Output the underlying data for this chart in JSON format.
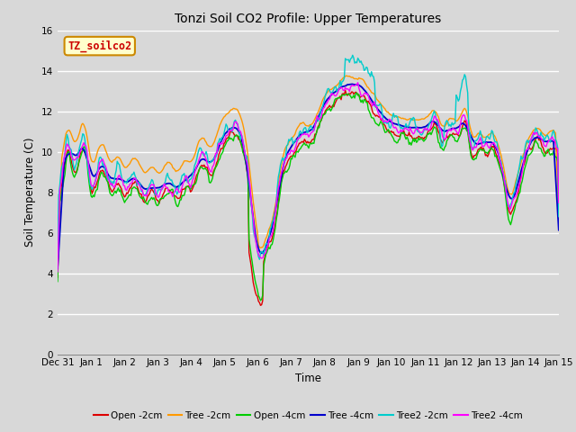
{
  "title": "Tonzi Soil CO2 Profile: Upper Temperatures",
  "xlabel": "Time",
  "ylabel": "Soil Temperature (C)",
  "ylim": [
    0,
    16
  ],
  "yticks": [
    0,
    2,
    4,
    6,
    8,
    10,
    12,
    14,
    16
  ],
  "watermark": "TZ_soilco2",
  "bg_color": "#d8d8d8",
  "series": [
    {
      "label": "Open -2cm",
      "color": "#dd0000"
    },
    {
      "label": "Tree -2cm",
      "color": "#ff9900"
    },
    {
      "label": "Open -4cm",
      "color": "#00cc00"
    },
    {
      "label": "Tree -4cm",
      "color": "#0000cc"
    },
    {
      "label": "Tree2 -2cm",
      "color": "#00cccc"
    },
    {
      "label": "Tree2 -4cm",
      "color": "#ff00ff"
    }
  ],
  "x_labels": [
    "Dec 31",
    "Jan 1",
    "Jan 2",
    "Jan 3",
    "Jan 4",
    "Jan 5",
    "Jan 6",
    "Jan 7",
    "Jan 8",
    "Jan 9",
    "Jan 10",
    "Jan 11",
    "Jan 12",
    "Jan 13",
    "Jan 14",
    "Jan 15"
  ],
  "num_points": 480
}
